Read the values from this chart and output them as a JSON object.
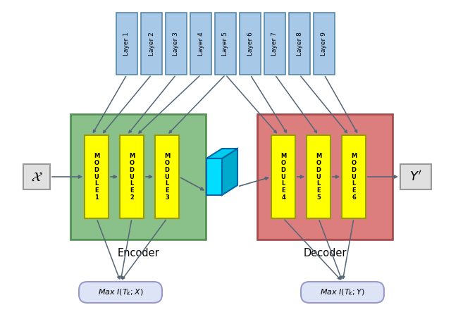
{
  "layer_boxes": [
    "Layer 1",
    "Layer 2",
    "Layer 3",
    "Layer 4",
    "Layer 5",
    "Layer 6",
    "Layer 7",
    "Layer 8",
    "Layer 9"
  ],
  "layer_color": "#a8c8e8",
  "layer_edge_color": "#5588aa",
  "encoder_modules": [
    "M\nO\nD\nU\nL\nE\n1",
    "M\nO\nD\nU\nL\nE\n2",
    "M\nO\nD\nU\nL\nE\n3"
  ],
  "decoder_modules": [
    "M\nO\nD\nU\nL\nE\n4",
    "M\nO\nD\nU\nL\nE\n5",
    "M\nO\nD\nU\nL\nE\n6"
  ],
  "module_color": "#ffff00",
  "module_edge_color": "#999900",
  "encoder_bg": "#7dba7d",
  "encoder_edge": "#4a8a4a",
  "decoder_bg": "#d97070",
  "decoder_edge": "#a04040",
  "input_label": "$\\mathcal{X}$",
  "output_label": "$\\it{Y}'$",
  "encoder_label": "Encoder",
  "decoder_label": "Decoder",
  "mi_encoder_label": "Max $I(T_k;X)$",
  "mi_decoder_label": "Max $I(T_k;Y)$",
  "mi_box_color": "#dce4f5",
  "mi_edge_color": "#9999cc",
  "io_box_color": "#e0e0e0",
  "io_edge_color": "#999999",
  "arrow_color": "#556677",
  "background_color": "#ffffff",
  "figsize": [
    6.4,
    4.43
  ],
  "dpi": 100
}
